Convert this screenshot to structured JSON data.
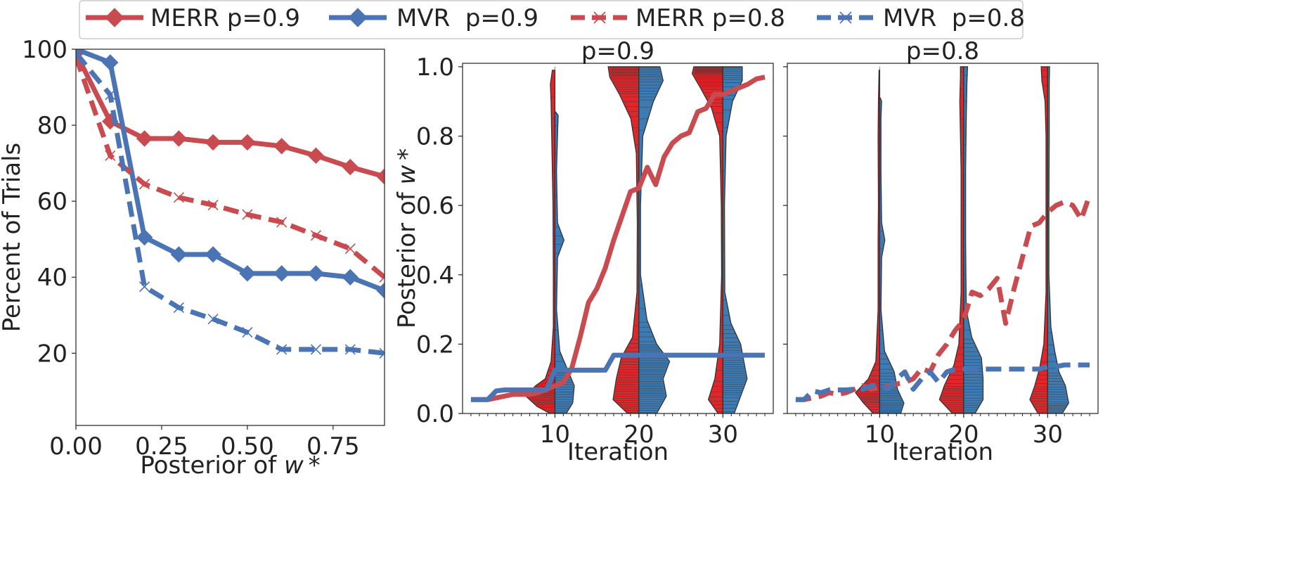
{
  "colors": {
    "merr": "#c84b50",
    "mvr": "#4a74b4",
    "violin_red": "#e0262a",
    "violin_blue": "#3d7bb5",
    "edge": "#333333"
  },
  "legend": {
    "entries": [
      {
        "label": "MERR p=0.9",
        "color": "merr",
        "dash": false,
        "marker": "diamond"
      },
      {
        "label": "MVR  p=0.9",
        "color": "mvr",
        "dash": false,
        "marker": "diamond"
      },
      {
        "label": "MERR p=0.8",
        "color": "merr",
        "dash": true,
        "marker": "x"
      },
      {
        "label": "MVR  p=0.8",
        "color": "mvr",
        "dash": true,
        "marker": "x"
      }
    ]
  },
  "chart_data": [
    {
      "type": "line",
      "title": "",
      "xlabel": "Posterior of w*",
      "ylabel": "Percent of Trials",
      "xlim": [
        0,
        0.9
      ],
      "ylim": [
        1,
        100
      ],
      "xticks": [
        0,
        0.25,
        0.5,
        0.75
      ],
      "xtick_labels": [
        "0.00",
        "0.25",
        "0.50",
        "0.75"
      ],
      "yticks": [
        20,
        40,
        60,
        80,
        100
      ],
      "ytick_labels": [
        "20",
        "40",
        "60",
        "80",
        "100"
      ],
      "x": [
        0.0,
        0.1,
        0.2,
        0.3,
        0.4,
        0.5,
        0.6,
        0.7,
        0.8,
        0.9
      ],
      "series": [
        {
          "name": "MERR p=0.9",
          "color": "merr",
          "dash": false,
          "marker": "diamond",
          "values": [
            99,
            81,
            76.5,
            76.5,
            75.5,
            75.5,
            74.5,
            72,
            69,
            66.5
          ]
        },
        {
          "name": "MVR  p=0.9",
          "color": "mvr",
          "dash": false,
          "marker": "diamond",
          "values": [
            100,
            96.5,
            50.5,
            46,
            46,
            41,
            41,
            41,
            40,
            36.5
          ]
        },
        {
          "name": "MERR p=0.8",
          "color": "merr",
          "dash": true,
          "marker": "x",
          "values": [
            98,
            72,
            64.5,
            61,
            59,
            56.5,
            54.5,
            51,
            47.5,
            40
          ]
        },
        {
          "name": "MVR  p=0.8",
          "color": "mvr",
          "dash": true,
          "marker": "x",
          "values": [
            99,
            88,
            37.5,
            32,
            29,
            25.5,
            21,
            21,
            21,
            20
          ]
        }
      ]
    },
    {
      "type": "line",
      "title": "p=0.9",
      "xlabel": "Iteration",
      "ylabel": "Posterior of w*",
      "xlim": [
        -1,
        36
      ],
      "ylim": [
        0,
        1.01
      ],
      "xticks": [
        10,
        20,
        30
      ],
      "xtick_labels": [
        "10",
        "20",
        "30"
      ],
      "yticks": [
        0,
        0.2,
        0.4,
        0.6,
        0.8,
        1.0
      ],
      "ytick_labels": [
        "0.0",
        "0.2",
        "0.4",
        "0.6",
        "0.8",
        "1.0"
      ],
      "x": [
        0,
        1,
        2,
        3,
        4,
        5,
        6,
        7,
        8,
        9,
        10,
        11,
        12,
        13,
        14,
        15,
        16,
        17,
        18,
        19,
        20,
        21,
        22,
        23,
        24,
        25,
        26,
        27,
        28,
        29,
        30,
        31,
        32,
        33,
        34,
        35
      ],
      "series": [
        {
          "name": "MERR p=0.9",
          "color": "merr",
          "dash": false,
          "values": [
            0.04,
            0.04,
            0.04,
            0.045,
            0.05,
            0.055,
            0.055,
            0.055,
            0.06,
            0.07,
            0.08,
            0.09,
            0.13,
            0.22,
            0.32,
            0.36,
            0.42,
            0.5,
            0.57,
            0.64,
            0.65,
            0.71,
            0.66,
            0.74,
            0.78,
            0.8,
            0.81,
            0.87,
            0.88,
            0.92,
            0.92,
            0.93,
            0.94,
            0.95,
            0.965,
            0.97
          ]
        },
        {
          "name": "MVR  p=0.9",
          "color": "mvr",
          "dash": false,
          "values": [
            0.04,
            0.04,
            0.04,
            0.065,
            0.068,
            0.068,
            0.068,
            0.068,
            0.068,
            0.068,
            0.125,
            0.125,
            0.125,
            0.125,
            0.125,
            0.125,
            0.125,
            0.168,
            0.168,
            0.168,
            0.168,
            0.168,
            0.168,
            0.168,
            0.168,
            0.168,
            0.168,
            0.168,
            0.168,
            0.168,
            0.168,
            0.168,
            0.168,
            0.168,
            0.168,
            0.168
          ]
        }
      ],
      "violins": [
        {
          "x": 10,
          "left": "MERR",
          "right": "MVR"
        },
        {
          "x": 20,
          "left": "MERR",
          "right": "MVR"
        },
        {
          "x": 30,
          "left": "MERR",
          "right": "MVR"
        }
      ]
    },
    {
      "type": "line",
      "title": "p=0.8",
      "xlabel": "Iteration",
      "ylabel": "",
      "xlim": [
        -1,
        36
      ],
      "ylim": [
        0,
        1.01
      ],
      "xticks": [
        10,
        20,
        30
      ],
      "xtick_labels": [
        "10",
        "20",
        "30"
      ],
      "yticks": [
        0,
        0.2,
        0.4,
        0.6,
        0.8,
        1.0
      ],
      "x": [
        0,
        1,
        2,
        3,
        4,
        5,
        6,
        7,
        8,
        9,
        10,
        11,
        12,
        13,
        14,
        15,
        16,
        17,
        18,
        19,
        20,
        21,
        22,
        23,
        24,
        25,
        26,
        27,
        28,
        29,
        30,
        31,
        32,
        33,
        34,
        35
      ],
      "series": [
        {
          "name": "MERR p=0.8",
          "color": "merr",
          "dash": true,
          "values": [
            0.04,
            0.04,
            0.045,
            0.05,
            0.06,
            0.055,
            0.06,
            0.07,
            0.08,
            0.07,
            0.075,
            0.08,
            0.085,
            0.09,
            0.1,
            0.13,
            0.12,
            0.17,
            0.2,
            0.24,
            0.27,
            0.35,
            0.34,
            0.36,
            0.39,
            0.26,
            0.36,
            0.45,
            0.54,
            0.55,
            0.58,
            0.6,
            0.61,
            0.6,
            0.56,
            0.63
          ]
        },
        {
          "name": "MVR  p=0.8",
          "color": "mvr",
          "dash": true,
          "values": [
            0.04,
            0.04,
            0.065,
            0.06,
            0.068,
            0.068,
            0.068,
            0.07,
            0.07,
            0.08,
            0.08,
            0.07,
            0.1,
            0.12,
            0.07,
            0.1,
            0.12,
            0.09,
            0.12,
            0.128,
            0.128,
            0.128,
            0.128,
            0.128,
            0.128,
            0.128,
            0.128,
            0.128,
            0.128,
            0.128,
            0.135,
            0.135,
            0.14,
            0.14,
            0.14,
            0.14
          ]
        }
      ],
      "violins": [
        {
          "x": 10,
          "left": "MERR",
          "right": "MVR"
        },
        {
          "x": 20,
          "left": "MERR",
          "right": "MVR"
        },
        {
          "x": 30,
          "left": "MERR",
          "right": "MVR"
        }
      ]
    }
  ]
}
